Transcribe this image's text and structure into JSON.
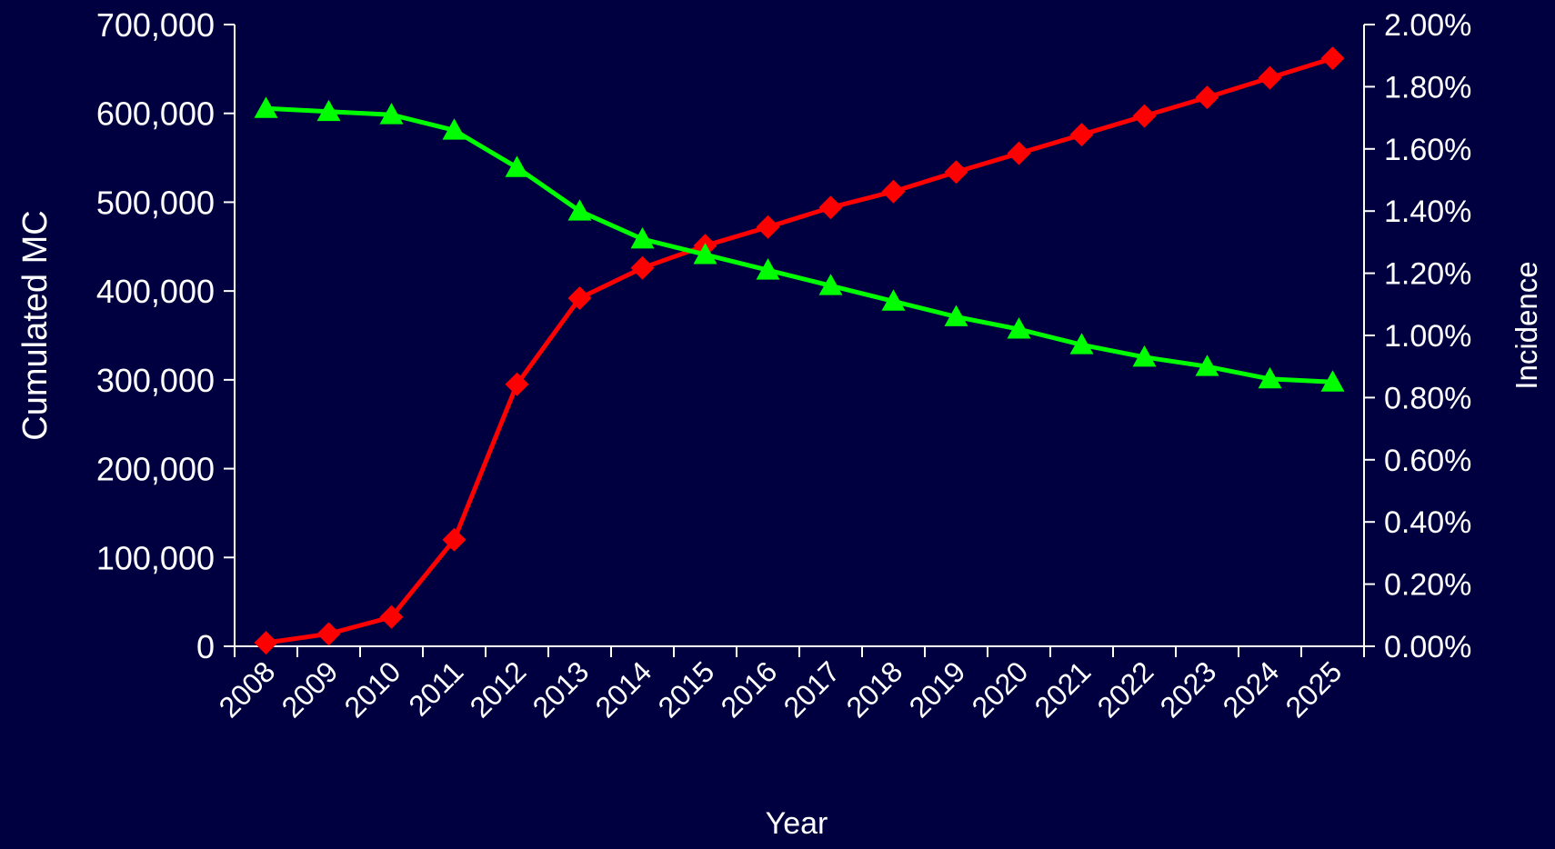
{
  "colors": {
    "background": "#000040",
    "axis": "#ffffff",
    "text": "#ffffff",
    "series_mc": "#ff0000",
    "series_incidence": "#00ff00"
  },
  "chart_data": {
    "type": "line",
    "title": "",
    "xlabel": "Year",
    "ylabel_left": "Cumulated MC",
    "ylabel_right": "Incidence",
    "categories": [
      "2008",
      "2009",
      "2010",
      "2011",
      "2012",
      "2013",
      "2014",
      "2015",
      "2016",
      "2017",
      "2018",
      "2019",
      "2020",
      "2021",
      "2022",
      "2023",
      "2024",
      "2025"
    ],
    "y_left": {
      "lim": [
        0,
        700000
      ],
      "ticks": [
        0,
        100000,
        200000,
        300000,
        400000,
        500000,
        600000,
        700000
      ],
      "tick_labels": [
        "0",
        "100,000",
        "200,000",
        "300,000",
        "400,000",
        "500,000",
        "600,000",
        "700,000"
      ]
    },
    "y_right": {
      "lim": [
        0,
        0.02
      ],
      "ticks": [
        0,
        0.002,
        0.004,
        0.006,
        0.008,
        0.01,
        0.012,
        0.014,
        0.016,
        0.018,
        0.02
      ],
      "tick_labels": [
        "0.00%",
        "0.20%",
        "0.40%",
        "0.60%",
        "0.80%",
        "1.00%",
        "1.20%",
        "1.40%",
        "1.60%",
        "1.80%",
        "2.00%"
      ]
    },
    "series": [
      {
        "axis": "left",
        "marker": "diamond",
        "color": "#ff0000",
        "values": [
          4000,
          14000,
          33000,
          120000,
          295000,
          392000,
          426000,
          451000,
          472000,
          494000,
          512000,
          534000,
          555000,
          576000,
          597000,
          618000,
          640000,
          662000
        ]
      },
      {
        "axis": "right",
        "marker": "triangle",
        "color": "#00ff00",
        "values": [
          0.0173,
          0.0172,
          0.0171,
          0.0166,
          0.0154,
          0.014,
          0.0131,
          0.0126,
          0.0121,
          0.0116,
          0.0111,
          0.0106,
          0.0102,
          0.0097,
          0.0093,
          0.009,
          0.0086,
          0.0085
        ]
      }
    ]
  }
}
